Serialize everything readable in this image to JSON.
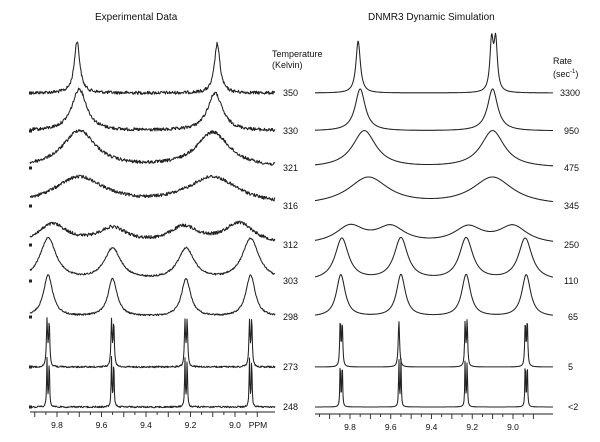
{
  "left_title": "Experimental Data",
  "right_title": "DNMR3 Dynamic Simulation",
  "temp_header": [
    "Temperature",
    "(Kelvin)"
  ],
  "rate_header": [
    "Rate",
    "(sec",
    "-1",
    ")"
  ],
  "temperatures": [
    "350",
    "330",
    "321",
    "316",
    "312",
    "303",
    "298",
    "273",
    "248"
  ],
  "rates": [
    "3300",
    "950",
    "475",
    "345",
    "250",
    "110",
    "65",
    "5",
    "<2"
  ],
  "ppm_unit": "PPM",
  "chart_data": [
    {
      "type": "line",
      "title": "Experimental Data",
      "xlabel": "PPM",
      "x_reversed": true,
      "xlim": [
        9.95,
        8.9
      ],
      "xticks": [
        9.8,
        9.6,
        9.4,
        9.2,
        9.0
      ],
      "legend": "right",
      "series": [
        {
          "name": "350",
          "peaks": [
            {
              "ppm": 9.71,
              "height": 1.0,
              "width": 0.015
            },
            {
              "ppm": 9.08,
              "height": 0.95,
              "width": 0.015
            }
          ]
        },
        {
          "name": "330",
          "peaks": [
            {
              "ppm": 9.7,
              "height": 1.0,
              "width": 0.04
            },
            {
              "ppm": 9.09,
              "height": 0.9,
              "width": 0.04
            }
          ]
        },
        {
          "name": "321",
          "peaks": [
            {
              "ppm": 9.7,
              "height": 1.0,
              "width": 0.09
            },
            {
              "ppm": 9.1,
              "height": 0.95,
              "width": 0.09
            }
          ]
        },
        {
          "name": "316",
          "peaks": [
            {
              "ppm": 9.7,
              "height": 1.0,
              "width": 0.14
            },
            {
              "ppm": 9.1,
              "height": 1.0,
              "width": 0.14
            }
          ]
        },
        {
          "name": "312",
          "peaks": [
            {
              "ppm": 9.82,
              "height": 0.9,
              "width": 0.08
            },
            {
              "ppm": 9.55,
              "height": 0.7,
              "width": 0.08
            },
            {
              "ppm": 9.23,
              "height": 0.75,
              "width": 0.08
            },
            {
              "ppm": 8.98,
              "height": 0.95,
              "width": 0.08
            }
          ]
        },
        {
          "name": "303",
          "peaks": [
            {
              "ppm": 9.84,
              "height": 1.0,
              "width": 0.045
            },
            {
              "ppm": 9.55,
              "height": 0.75,
              "width": 0.045
            },
            {
              "ppm": 9.22,
              "height": 0.75,
              "width": 0.045
            },
            {
              "ppm": 8.93,
              "height": 1.0,
              "width": 0.045
            }
          ]
        },
        {
          "name": "298",
          "peaks": [
            {
              "ppm": 9.84,
              "height": 1.0,
              "width": 0.025
            },
            {
              "ppm": 9.55,
              "height": 0.9,
              "width": 0.025
            },
            {
              "ppm": 9.22,
              "height": 0.9,
              "width": 0.025
            },
            {
              "ppm": 8.93,
              "height": 1.0,
              "width": 0.025
            }
          ]
        },
        {
          "name": "273",
          "peaks": [
            {
              "ppm": 9.845,
              "height": 1.0,
              "width": 0.003
            },
            {
              "ppm": 9.835,
              "height": 0.95,
              "width": 0.003
            },
            {
              "ppm": 9.555,
              "height": 1.0,
              "width": 0.003
            },
            {
              "ppm": 9.545,
              "height": 0.95,
              "width": 0.003
            },
            {
              "ppm": 9.225,
              "height": 0.95,
              "width": 0.003
            },
            {
              "ppm": 9.215,
              "height": 1.0,
              "width": 0.003
            },
            {
              "ppm": 8.935,
              "height": 0.95,
              "width": 0.003
            },
            {
              "ppm": 8.925,
              "height": 1.0,
              "width": 0.003
            }
          ]
        },
        {
          "name": "248",
          "peaks": [
            {
              "ppm": 9.845,
              "height": 1.0,
              "width": 0.002
            },
            {
              "ppm": 9.835,
              "height": 1.0,
              "width": 0.002
            },
            {
              "ppm": 9.555,
              "height": 1.0,
              "width": 0.002
            },
            {
              "ppm": 9.545,
              "height": 1.0,
              "width": 0.002
            },
            {
              "ppm": 9.225,
              "height": 1.0,
              "width": 0.002
            },
            {
              "ppm": 9.215,
              "height": 1.0,
              "width": 0.002
            },
            {
              "ppm": 8.935,
              "height": 1.0,
              "width": 0.002
            },
            {
              "ppm": 8.925,
              "height": 1.0,
              "width": 0.002
            }
          ]
        }
      ]
    },
    {
      "type": "line",
      "title": "DNMR3 Dynamic Simulation",
      "xlabel": "",
      "x_reversed": true,
      "xlim": [
        9.95,
        8.9
      ],
      "xticks": [
        9.8,
        9.6,
        9.4,
        9.2,
        9.0
      ],
      "legend": "right",
      "series": [
        {
          "name": "3300",
          "peaks": [
            {
              "ppm": 9.76,
              "height": 1.0,
              "width": 0.013
            },
            {
              "ppm": 9.105,
              "height": 0.95,
              "width": 0.01
            },
            {
              "ppm": 9.085,
              "height": 0.95,
              "width": 0.01
            }
          ]
        },
        {
          "name": "950",
          "peaks": [
            {
              "ppm": 9.75,
              "height": 1.0,
              "width": 0.03
            },
            {
              "ppm": 9.1,
              "height": 1.0,
              "width": 0.03
            }
          ]
        },
        {
          "name": "475",
          "peaks": [
            {
              "ppm": 9.73,
              "height": 1.0,
              "width": 0.07
            },
            {
              "ppm": 9.1,
              "height": 1.0,
              "width": 0.07
            }
          ]
        },
        {
          "name": "345",
          "peaks": [
            {
              "ppm": 9.71,
              "height": 1.0,
              "width": 0.12
            },
            {
              "ppm": 9.1,
              "height": 1.0,
              "width": 0.12
            }
          ]
        },
        {
          "name": "250",
          "peaks": [
            {
              "ppm": 9.8,
              "height": 0.8,
              "width": 0.085
            },
            {
              "ppm": 9.6,
              "height": 0.75,
              "width": 0.085
            },
            {
              "ppm": 9.22,
              "height": 0.75,
              "width": 0.085
            },
            {
              "ppm": 9.0,
              "height": 0.8,
              "width": 0.085
            }
          ]
        },
        {
          "name": "110",
          "peaks": [
            {
              "ppm": 9.84,
              "height": 1.0,
              "width": 0.04
            },
            {
              "ppm": 9.55,
              "height": 1.0,
              "width": 0.04
            },
            {
              "ppm": 9.23,
              "height": 1.0,
              "width": 0.04
            },
            {
              "ppm": 8.94,
              "height": 1.0,
              "width": 0.04
            }
          ]
        },
        {
          "name": "65",
          "peaks": [
            {
              "ppm": 9.845,
              "height": 1.0,
              "width": 0.026
            },
            {
              "ppm": 9.55,
              "height": 1.0,
              "width": 0.026
            },
            {
              "ppm": 9.23,
              "height": 1.0,
              "width": 0.026
            },
            {
              "ppm": 8.935,
              "height": 1.0,
              "width": 0.026
            }
          ]
        },
        {
          "name": "5",
          "peaks": [
            {
              "ppm": 9.848,
              "height": 1.0,
              "width": 0.003
            },
            {
              "ppm": 9.838,
              "height": 0.95,
              "width": 0.003
            },
            {
              "ppm": 9.56,
              "height": 1.0,
              "width": 0.004
            },
            {
              "ppm": 9.235,
              "height": 0.95,
              "width": 0.003
            },
            {
              "ppm": 9.225,
              "height": 1.0,
              "width": 0.003
            },
            {
              "ppm": 8.94,
              "height": 0.95,
              "width": 0.003
            },
            {
              "ppm": 8.93,
              "height": 1.0,
              "width": 0.003
            }
          ]
        },
        {
          "name": "<2",
          "peaks": [
            {
              "ppm": 9.848,
              "height": 1.0,
              "width": 0.002
            },
            {
              "ppm": 9.838,
              "height": 1.0,
              "width": 0.002
            },
            {
              "ppm": 9.56,
              "height": 1.0,
              "width": 0.002
            },
            {
              "ppm": 9.55,
              "height": 1.0,
              "width": 0.002
            },
            {
              "ppm": 9.235,
              "height": 1.0,
              "width": 0.002
            },
            {
              "ppm": 9.225,
              "height": 1.0,
              "width": 0.002
            },
            {
              "ppm": 8.94,
              "height": 1.0,
              "width": 0.002
            },
            {
              "ppm": 8.93,
              "height": 1.0,
              "width": 0.002
            }
          ]
        }
      ]
    }
  ]
}
